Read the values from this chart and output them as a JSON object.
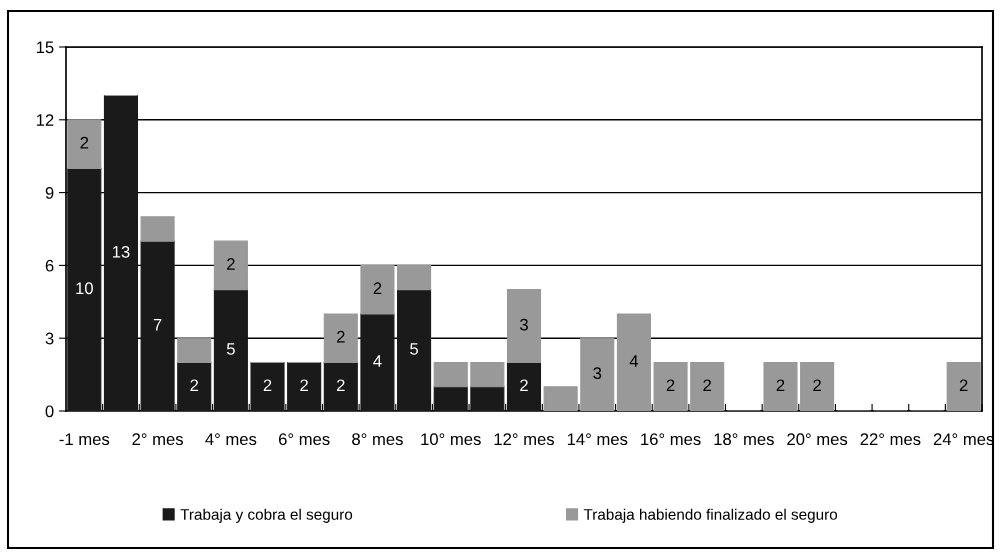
{
  "chart_data": {
    "type": "bar",
    "stacked": true,
    "categories": [
      "-1 mes",
      null,
      "2° mes",
      null,
      "4° mes",
      null,
      "6° mes",
      null,
      "8° mes",
      null,
      "10° mes",
      null,
      "12° mes",
      null,
      "14° mes",
      null,
      "16° mes",
      null,
      "18° mes",
      null,
      "20° mes",
      null,
      "22° mes",
      null,
      "24° mes"
    ],
    "series": [
      {
        "name": "Trabaja y cobra el seguro",
        "color": "#1a1a1a",
        "values": [
          10,
          13,
          7,
          2,
          5,
          2,
          2,
          2,
          4,
          5,
          1,
          1,
          2,
          0,
          0,
          0,
          0,
          0,
          0,
          0,
          0,
          0,
          0,
          0,
          0
        ],
        "value_labels": [
          "10",
          "13",
          "7",
          "2",
          "5",
          "2",
          "2",
          "2",
          "4",
          "5",
          null,
          null,
          "2",
          null,
          null,
          null,
          null,
          null,
          null,
          null,
          null,
          null,
          null,
          null,
          null
        ]
      },
      {
        "name": "Trabaja habiendo finalizado el seguro",
        "color": "#999999",
        "values": [
          2,
          0,
          1,
          1,
          2,
          0,
          0,
          2,
          2,
          1,
          1,
          1,
          3,
          1,
          3,
          4,
          2,
          2,
          0,
          2,
          2,
          0,
          0,
          0,
          2
        ],
        "value_labels": [
          "2",
          null,
          null,
          null,
          "2",
          null,
          null,
          "2",
          "2",
          null,
          null,
          null,
          "3",
          null,
          "3",
          "4",
          "2",
          "2",
          null,
          "2",
          "2",
          null,
          null,
          null,
          "2"
        ]
      }
    ],
    "ylim": [
      0,
      15
    ],
    "yticks": [
      0,
      3,
      6,
      9,
      12,
      15
    ],
    "grid": "y",
    "legend": "bottom"
  }
}
